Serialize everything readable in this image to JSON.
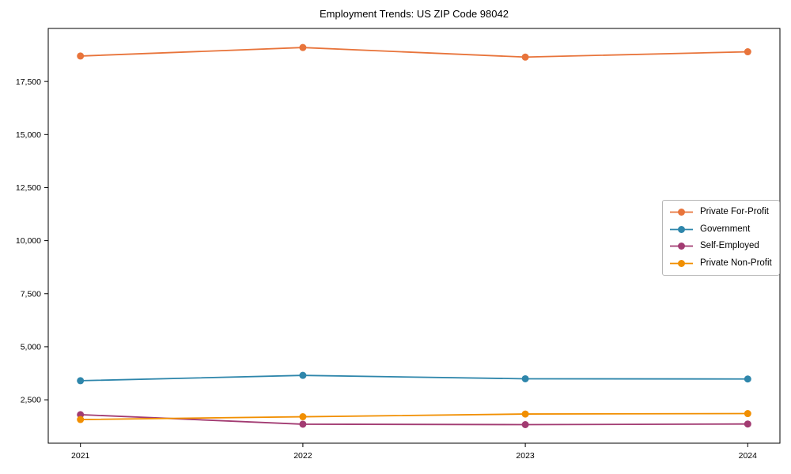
{
  "chart_data": {
    "type": "line",
    "title": "Employment Trends: US ZIP Code 98042",
    "categories": [
      "2021",
      "2022",
      "2023",
      "2024"
    ],
    "series": [
      {
        "name": "Private For-Profit",
        "color": "#E8743B",
        "values": [
          18700,
          19100,
          18650,
          18900
        ]
      },
      {
        "name": "Government",
        "color": "#2E86AB",
        "values": [
          3400,
          3650,
          3490,
          3480
        ]
      },
      {
        "name": "Self-Employed",
        "color": "#A23B72",
        "values": [
          1800,
          1350,
          1330,
          1360
        ]
      },
      {
        "name": "Private Non-Profit",
        "color": "#F18F01",
        "values": [
          1570,
          1700,
          1830,
          1850
        ]
      }
    ],
    "ytick_values": [
      2500,
      5000,
      7500,
      10000,
      12500,
      15000,
      17500
    ],
    "ytick_labels": [
      "2,500",
      "5,000",
      "7,500",
      "10,000",
      "12,500",
      "15,000",
      "17,500"
    ],
    "ylim": [
      455,
      20000
    ],
    "xlabel": "",
    "ylabel": "",
    "grid": false,
    "legend_position": "center-right",
    "axis_color": "#000000",
    "background_color": "#ffffff"
  }
}
